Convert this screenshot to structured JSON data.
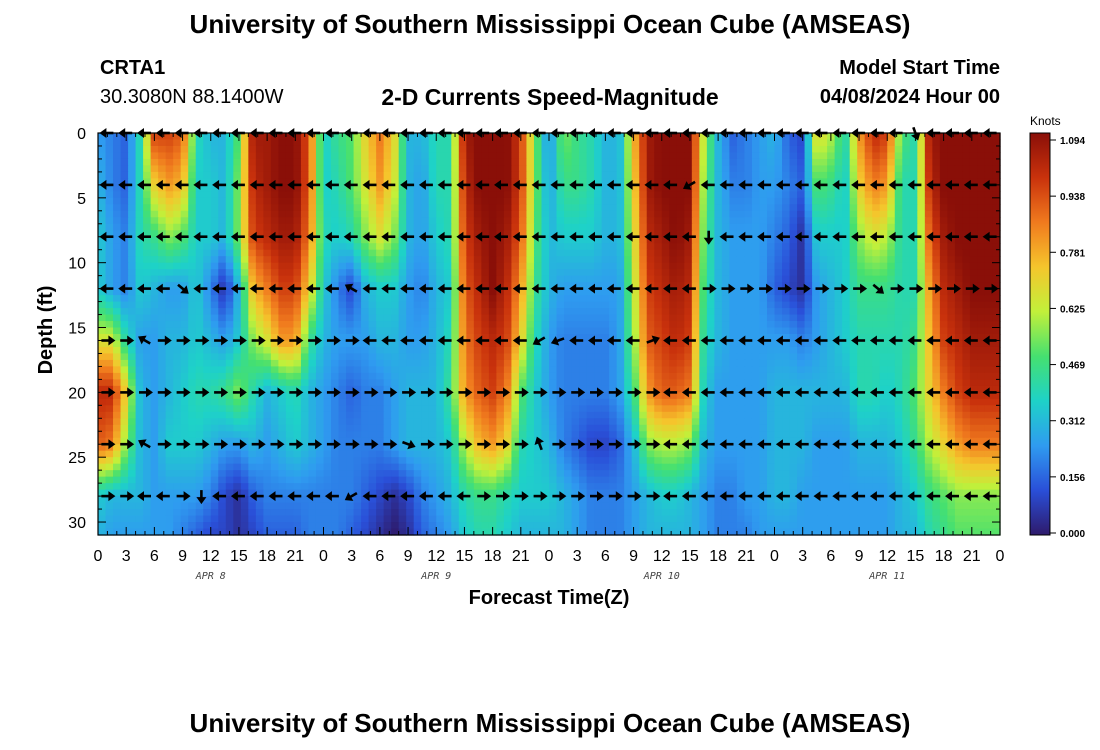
{
  "header": {
    "title": "University of Southern Mississippi Ocean Cube (AMSEAS)",
    "station_id": "CRTA1",
    "station_coords": "30.3080N  88.1400W",
    "plot_title": "2-D Currents Speed-Magnitude",
    "model_start_label": "Model Start Time",
    "model_start_value": "04/08/2024 Hour 00"
  },
  "footer": {
    "title": "University of Southern Mississippi Ocean Cube (AMSEAS)"
  },
  "colors": {
    "colormap": [
      "#2e1a6b",
      "#2a4fd8",
      "#2f9bf0",
      "#1ed2c8",
      "#45e070",
      "#c2f03a",
      "#f5c52c",
      "#f07a1e",
      "#c9320c",
      "#8a0f08"
    ],
    "arrow": "#000000"
  },
  "chart_data": {
    "type": "heatmap",
    "title": "2-D Currents Speed-Magnitude",
    "xlabel": "Forecast Time(Z)",
    "ylabel": "Depth (ft)",
    "x_ticks": [
      "0",
      "3",
      "6",
      "9",
      "12",
      "15",
      "18",
      "21",
      "0",
      "3",
      "6",
      "9",
      "12",
      "15",
      "18",
      "21",
      "0",
      "3",
      "6",
      "9",
      "12",
      "15",
      "18",
      "21",
      "0",
      "3",
      "6",
      "9",
      "12",
      "15",
      "18",
      "21",
      "0"
    ],
    "x_range_hours": [
      0,
      96
    ],
    "date_labels": [
      {
        "label": "APR 8",
        "hour": 12
      },
      {
        "label": "APR 9",
        "hour": 36
      },
      {
        "label": "APR 10",
        "hour": 60
      },
      {
        "label": "APR 11",
        "hour": 84
      }
    ],
    "y_ticks": [
      "0",
      "5",
      "10",
      "15",
      "20",
      "25",
      "30"
    ],
    "y_range_ft": [
      0,
      31
    ],
    "depths_ft": [
      0,
      4,
      8,
      12,
      16,
      20,
      24,
      28,
      31
    ],
    "hours": [
      0,
      1.5,
      3,
      4.5,
      6,
      7.5,
      9,
      10.5,
      12,
      13.5,
      15,
      16.5,
      18,
      19.5,
      21,
      22.5,
      24,
      25.5,
      27,
      28.5,
      30,
      31.5,
      33,
      34.5,
      36,
      37.5,
      39,
      40.5,
      42,
      43.5,
      45,
      46.5,
      48,
      49.5,
      51,
      52.5,
      54,
      55.5,
      57,
      58.5,
      60,
      61.5,
      63,
      64.5,
      66,
      67.5,
      69,
      70.5,
      72,
      73.5,
      75,
      76.5,
      78,
      79.5,
      81,
      82.5,
      84,
      85.5,
      87,
      88.5,
      90,
      91.5,
      93,
      94.5,
      96
    ],
    "speed_knots": [
      [
        0.25,
        0.2,
        0.15,
        0.4,
        0.95,
        0.95,
        0.9,
        0.4,
        0.3,
        0.3,
        0.5,
        1.05,
        1.05,
        1.1,
        1.1,
        0.9,
        0.35,
        0.45,
        0.5,
        0.7,
        0.85,
        0.7,
        0.3,
        0.3,
        0.4,
        0.4,
        1.05,
        1.1,
        1.1,
        1.1,
        0.95,
        0.55,
        0.2,
        0.55,
        0.45,
        0.4,
        0.3,
        0.3,
        0.75,
        1.05,
        1.1,
        1.1,
        1.1,
        0.6,
        0.3,
        0.15,
        0.2,
        0.25,
        0.3,
        0.15,
        0.1,
        0.7,
        0.6,
        0.4,
        0.8,
        1.0,
        0.95,
        0.5,
        0.4,
        1.05,
        1.1,
        1.1,
        1.1,
        1.1,
        1.1
      ],
      [
        0.3,
        0.2,
        0.15,
        0.4,
        0.7,
        0.8,
        0.75,
        0.35,
        0.35,
        0.3,
        0.55,
        1.0,
        1.05,
        1.1,
        1.1,
        0.9,
        0.35,
        0.4,
        0.5,
        0.65,
        0.8,
        0.65,
        0.3,
        0.25,
        0.4,
        0.4,
        1.0,
        1.1,
        1.1,
        1.1,
        0.95,
        0.55,
        0.25,
        0.45,
        0.45,
        0.4,
        0.3,
        0.3,
        0.7,
        1.05,
        1.1,
        1.1,
        1.1,
        0.55,
        0.3,
        0.2,
        0.2,
        0.25,
        0.25,
        0.2,
        0.15,
        0.5,
        0.45,
        0.35,
        0.7,
        0.85,
        0.8,
        0.4,
        0.4,
        1.0,
        1.1,
        1.1,
        1.1,
        1.1,
        1.1
      ],
      [
        0.35,
        0.25,
        0.2,
        0.4,
        0.45,
        0.55,
        0.5,
        0.35,
        0.35,
        0.3,
        0.55,
        0.95,
        1.0,
        1.05,
        1.05,
        0.85,
        0.4,
        0.35,
        0.4,
        0.55,
        0.65,
        0.55,
        0.3,
        0.25,
        0.35,
        0.4,
        0.95,
        1.05,
        1.1,
        1.05,
        0.9,
        0.5,
        0.3,
        0.35,
        0.35,
        0.35,
        0.3,
        0.3,
        0.65,
        1.0,
        1.05,
        1.1,
        1.05,
        0.5,
        0.3,
        0.25,
        0.25,
        0.25,
        0.2,
        0.15,
        0.05,
        0.35,
        0.35,
        0.35,
        0.55,
        0.65,
        0.6,
        0.4,
        0.4,
        0.9,
        1.05,
        1.1,
        1.1,
        1.1,
        1.1
      ],
      [
        0.35,
        0.25,
        0.2,
        0.35,
        0.3,
        0.25,
        0.25,
        0.35,
        0.2,
        0.05,
        0.3,
        0.75,
        0.85,
        0.95,
        0.95,
        0.7,
        0.35,
        0.2,
        0.1,
        0.3,
        0.35,
        0.35,
        0.25,
        0.2,
        0.3,
        0.35,
        0.9,
        1.0,
        1.1,
        1.0,
        0.8,
        0.45,
        0.3,
        0.25,
        0.25,
        0.25,
        0.25,
        0.25,
        0.6,
        0.95,
        1.0,
        1.05,
        1.0,
        0.45,
        0.3,
        0.25,
        0.25,
        0.25,
        0.15,
        0.1,
        0.05,
        0.25,
        0.3,
        0.35,
        0.45,
        0.45,
        0.45,
        0.4,
        0.4,
        0.8,
        1.0,
        1.05,
        1.1,
        1.1,
        1.1
      ],
      [
        0.65,
        0.65,
        0.4,
        0.25,
        0.25,
        0.3,
        0.3,
        0.35,
        0.3,
        0.25,
        0.35,
        0.55,
        0.65,
        0.8,
        0.8,
        0.45,
        0.3,
        0.25,
        0.25,
        0.25,
        0.3,
        0.3,
        0.25,
        0.25,
        0.3,
        0.4,
        0.85,
        0.95,
        1.0,
        0.95,
        0.7,
        0.4,
        0.25,
        0.2,
        0.2,
        0.2,
        0.2,
        0.25,
        0.55,
        0.9,
        0.95,
        1.0,
        0.95,
        0.4,
        0.3,
        0.25,
        0.25,
        0.25,
        0.25,
        0.25,
        0.2,
        0.25,
        0.3,
        0.35,
        0.4,
        0.4,
        0.4,
        0.4,
        0.45,
        0.75,
        0.95,
        1.0,
        1.05,
        1.05,
        1.05
      ],
      [
        1.0,
        1.0,
        0.7,
        0.3,
        0.25,
        0.3,
        0.35,
        0.4,
        0.4,
        0.45,
        0.55,
        0.4,
        0.3,
        0.35,
        0.4,
        0.3,
        0.25,
        0.2,
        0.15,
        0.2,
        0.2,
        0.25,
        0.3,
        0.3,
        0.3,
        0.45,
        0.8,
        0.9,
        0.95,
        0.85,
        0.5,
        0.35,
        0.25,
        0.2,
        0.2,
        0.2,
        0.2,
        0.25,
        0.45,
        0.8,
        0.9,
        0.9,
        0.85,
        0.35,
        0.25,
        0.25,
        0.25,
        0.25,
        0.3,
        0.3,
        0.3,
        0.3,
        0.3,
        0.3,
        0.4,
        0.4,
        0.35,
        0.4,
        0.5,
        0.7,
        0.85,
        0.95,
        1.0,
        1.0,
        1.0
      ],
      [
        0.9,
        0.85,
        0.55,
        0.3,
        0.25,
        0.35,
        0.35,
        0.35,
        0.3,
        0.25,
        0.25,
        0.3,
        0.25,
        0.3,
        0.35,
        0.3,
        0.25,
        0.2,
        0.2,
        0.2,
        0.2,
        0.25,
        0.3,
        0.3,
        0.3,
        0.35,
        0.6,
        0.75,
        0.8,
        0.7,
        0.4,
        0.35,
        0.3,
        0.2,
        0.15,
        0.1,
        0.1,
        0.15,
        0.3,
        0.55,
        0.6,
        0.6,
        0.55,
        0.3,
        0.25,
        0.25,
        0.25,
        0.25,
        0.3,
        0.3,
        0.3,
        0.25,
        0.25,
        0.25,
        0.3,
        0.3,
        0.3,
        0.35,
        0.45,
        0.6,
        0.7,
        0.8,
        0.85,
        0.85,
        0.85
      ],
      [
        0.35,
        0.3,
        0.3,
        0.3,
        0.25,
        0.25,
        0.25,
        0.25,
        0.2,
        0.1,
        0.05,
        0.15,
        0.2,
        0.2,
        0.2,
        0.2,
        0.2,
        0.2,
        0.2,
        0.15,
        0.1,
        0.05,
        0.1,
        0.2,
        0.25,
        0.3,
        0.4,
        0.45,
        0.45,
        0.4,
        0.35,
        0.35,
        0.35,
        0.3,
        0.25,
        0.2,
        0.2,
        0.2,
        0.25,
        0.3,
        0.35,
        0.35,
        0.3,
        0.25,
        0.2,
        0.2,
        0.25,
        0.25,
        0.3,
        0.3,
        0.25,
        0.25,
        0.25,
        0.25,
        0.25,
        0.25,
        0.25,
        0.3,
        0.35,
        0.45,
        0.5,
        0.55,
        0.55,
        0.55,
        0.55
      ],
      [
        0.3,
        0.25,
        0.25,
        0.25,
        0.25,
        0.25,
        0.2,
        0.15,
        0.1,
        0.1,
        0.05,
        0.1,
        0.15,
        0.15,
        0.15,
        0.2,
        0.2,
        0.2,
        0.15,
        0.1,
        0.05,
        0.0,
        0.05,
        0.15,
        0.2,
        0.25,
        0.35,
        0.4,
        0.4,
        0.35,
        0.3,
        0.3,
        0.3,
        0.3,
        0.25,
        0.2,
        0.2,
        0.2,
        0.25,
        0.3,
        0.3,
        0.3,
        0.3,
        0.25,
        0.2,
        0.2,
        0.2,
        0.25,
        0.25,
        0.25,
        0.25,
        0.25,
        0.25,
        0.25,
        0.25,
        0.25,
        0.25,
        0.3,
        0.3,
        0.4,
        0.45,
        0.5,
        0.5,
        0.5,
        0.5
      ]
    ],
    "arrow_rows_ft": [
      0,
      4,
      8,
      12,
      16,
      20,
      24,
      28
    ],
    "arrow_hours": [
      1,
      3,
      5,
      7,
      9,
      11,
      13,
      15,
      17,
      19,
      21,
      23,
      25,
      27,
      29,
      31,
      33,
      35,
      37,
      39,
      41,
      43,
      45,
      47,
      49,
      51,
      53,
      55,
      57,
      59,
      61,
      63,
      65,
      67,
      69,
      71,
      73,
      75,
      77,
      79,
      81,
      83,
      85,
      87,
      89,
      91,
      93,
      95
    ],
    "arrow_direction_deg": [
      [
        270,
        270,
        270,
        270,
        270,
        270,
        270,
        270,
        270,
        270,
        270,
        270,
        270,
        270,
        270,
        270,
        270,
        270,
        270,
        270,
        270,
        270,
        270,
        270,
        270,
        270,
        270,
        270,
        270,
        270,
        270,
        270,
        270,
        270,
        270,
        270,
        270,
        270,
        270,
        270,
        270,
        270,
        270,
        160,
        270,
        270,
        270,
        270
      ],
      [
        270,
        270,
        270,
        270,
        270,
        270,
        270,
        270,
        270,
        270,
        270,
        270,
        270,
        270,
        270,
        270,
        270,
        270,
        270,
        270,
        270,
        270,
        270,
        270,
        270,
        270,
        270,
        270,
        270,
        270,
        270,
        240,
        270,
        270,
        270,
        270,
        270,
        270,
        270,
        270,
        270,
        270,
        270,
        270,
        270,
        270,
        270,
        270
      ],
      [
        270,
        270,
        270,
        270,
        270,
        270,
        270,
        270,
        270,
        270,
        270,
        270,
        270,
        270,
        270,
        270,
        270,
        270,
        270,
        270,
        270,
        270,
        270,
        270,
        270,
        270,
        270,
        270,
        270,
        270,
        270,
        270,
        180,
        270,
        270,
        270,
        270,
        270,
        270,
        270,
        270,
        270,
        270,
        270,
        270,
        270,
        270,
        270
      ],
      [
        270,
        270,
        270,
        270,
        130,
        270,
        270,
        270,
        270,
        270,
        270,
        270,
        270,
        300,
        270,
        270,
        270,
        270,
        270,
        270,
        270,
        270,
        270,
        270,
        270,
        270,
        270,
        270,
        270,
        270,
        270,
        270,
        90,
        90,
        90,
        90,
        90,
        90,
        90,
        90,
        90,
        130,
        90,
        90,
        90,
        90,
        90,
        90
      ],
      [
        90,
        90,
        300,
        90,
        90,
        90,
        90,
        90,
        90,
        90,
        90,
        90,
        90,
        90,
        270,
        270,
        270,
        270,
        270,
        270,
        270,
        270,
        270,
        240,
        250,
        270,
        270,
        270,
        270,
        70,
        270,
        270,
        270,
        270,
        270,
        270,
        270,
        270,
        270,
        270,
        270,
        270,
        270,
        270,
        270,
        270,
        270,
        270
      ],
      [
        90,
        90,
        90,
        90,
        90,
        90,
        90,
        90,
        90,
        90,
        90,
        90,
        90,
        90,
        90,
        90,
        90,
        90,
        90,
        90,
        90,
        90,
        90,
        90,
        90,
        90,
        90,
        90,
        90,
        90,
        270,
        270,
        270,
        270,
        270,
        270,
        270,
        270,
        270,
        270,
        270,
        270,
        270,
        270,
        270,
        270,
        270,
        270
      ],
      [
        90,
        90,
        300,
        90,
        90,
        90,
        90,
        90,
        90,
        90,
        90,
        90,
        90,
        90,
        90,
        90,
        110,
        90,
        90,
        90,
        90,
        90,
        90,
        340,
        90,
        90,
        90,
        90,
        90,
        90,
        270,
        270,
        270,
        270,
        270,
        270,
        270,
        270,
        270,
        270,
        270,
        270,
        270,
        270,
        270,
        270,
        270,
        270
      ],
      [
        90,
        90,
        270,
        270,
        90,
        180,
        270,
        270,
        270,
        270,
        270,
        270,
        270,
        240,
        270,
        270,
        270,
        270,
        270,
        270,
        90,
        90,
        90,
        90,
        90,
        90,
        90,
        90,
        90,
        90,
        270,
        270,
        270,
        270,
        270,
        270,
        270,
        270,
        270,
        270,
        270,
        270,
        270,
        270,
        270,
        270,
        270,
        270
      ]
    ],
    "colorbar": {
      "unit": "Knots",
      "ticks": [
        "0.000",
        "0.156",
        "0.312",
        "0.469",
        "0.625",
        "0.781",
        "0.938",
        "1.094"
      ],
      "range": [
        0,
        1.094
      ]
    }
  }
}
